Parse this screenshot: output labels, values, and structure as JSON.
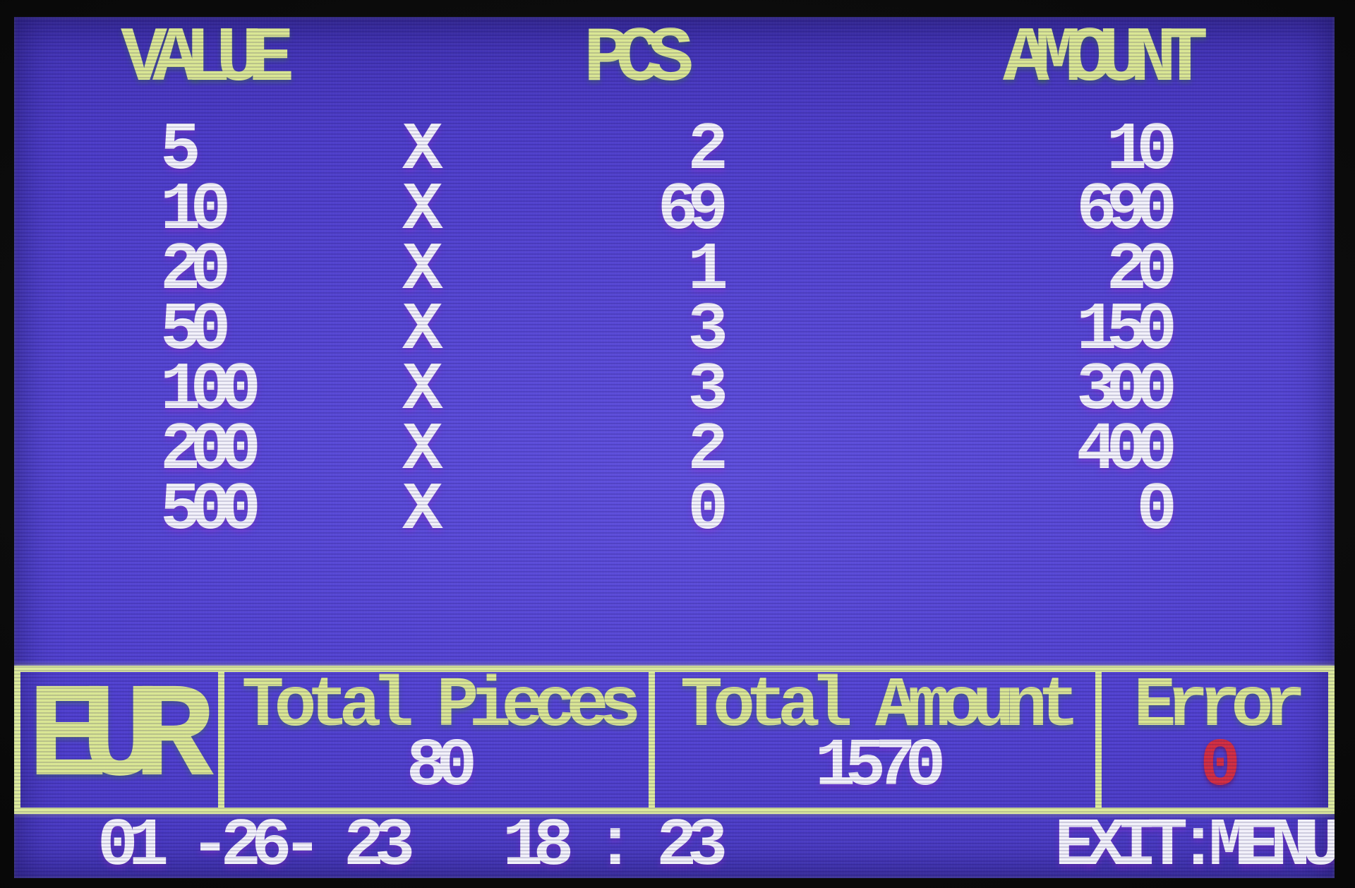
{
  "screen": {
    "table": {
      "headers": {
        "value": "VALUE",
        "pcs": "PCS",
        "amount": "AMOUNT"
      },
      "multiplier": "X",
      "rows": [
        {
          "value": "5",
          "pcs": "2",
          "amount": "10"
        },
        {
          "value": "10",
          "pcs": "69",
          "amount": "690"
        },
        {
          "value": "20",
          "pcs": "1",
          "amount": "20"
        },
        {
          "value": "50",
          "pcs": "3",
          "amount": "150"
        },
        {
          "value": "100",
          "pcs": "3",
          "amount": "300"
        },
        {
          "value": "200",
          "pcs": "2",
          "amount": "400"
        },
        {
          "value": "500",
          "pcs": "0",
          "amount": "0"
        }
      ]
    },
    "summary": {
      "currency": "EUR",
      "total_pieces": {
        "label": "Total Pieces",
        "value": "80"
      },
      "total_amount": {
        "label": "Total Amount",
        "value": "1570"
      },
      "error": {
        "label": "Error",
        "value": "0"
      }
    },
    "status": {
      "date": "01 -26- 23",
      "time": "18 : 23",
      "exit_hint": "EXIT:MENU"
    },
    "colors": {
      "screen_bg": "#4c3ccb",
      "header_green": "#d9e693",
      "text_white": "#f2f1fa",
      "border_green": "#dcea9c",
      "error_red": "#d12d42"
    }
  }
}
